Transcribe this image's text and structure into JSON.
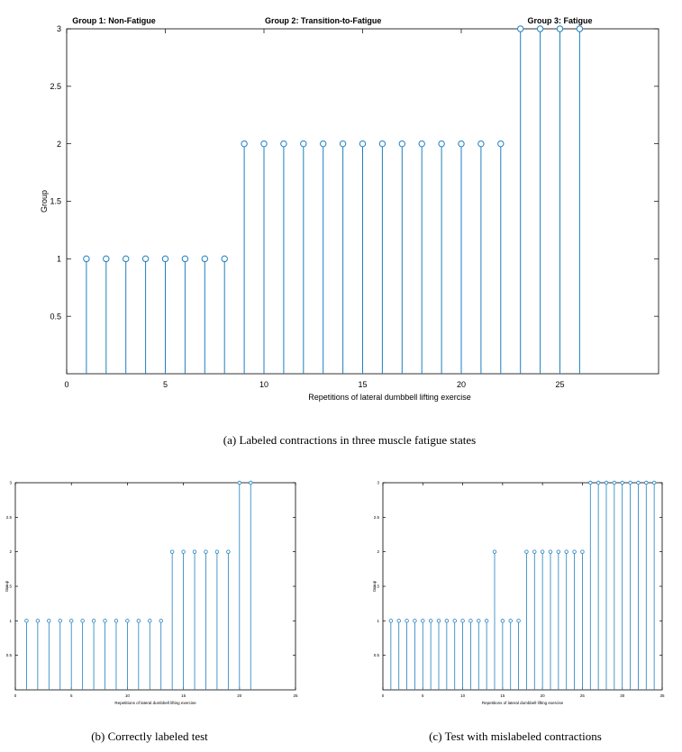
{
  "colors": {
    "stem": "#1f7fbf",
    "axis": "#000000",
    "background": "#ffffff"
  },
  "figure": {
    "caption_a": "(a)  Labeled contractions in three muscle fatigue states",
    "caption_b": "(b)  Correctly labeled test",
    "caption_c": "(c)  Test with mislabeled contractions"
  },
  "chart_data": [
    {
      "type": "stem",
      "id": "a",
      "xlabel": "Repetitions of lateral dumbbell lifting exercise",
      "ylabel": "Group",
      "xlim": [
        0,
        30
      ],
      "ylim": [
        0,
        3
      ],
      "xticks": [
        0,
        5,
        10,
        15,
        20,
        25
      ],
      "yticks": [
        0.5,
        1,
        1.5,
        2,
        2.5,
        3
      ],
      "annotations": [
        {
          "text": "Group 1: Non-Fatigue",
          "x": 2.4
        },
        {
          "text": "Group 2:  Transition-to-Fatigue",
          "x": 13.0
        },
        {
          "text": "Group 3: Fatigue",
          "x": 25.0
        }
      ],
      "x": [
        1,
        2,
        3,
        4,
        5,
        6,
        7,
        8,
        9,
        10,
        11,
        12,
        13,
        14,
        15,
        16,
        17,
        18,
        19,
        20,
        21,
        22,
        23,
        24,
        25,
        26
      ],
      "y": [
        1,
        1,
        1,
        1,
        1,
        1,
        1,
        1,
        2,
        2,
        2,
        2,
        2,
        2,
        2,
        2,
        2,
        2,
        2,
        2,
        2,
        2,
        3,
        3,
        3,
        3
      ]
    },
    {
      "type": "stem",
      "id": "b",
      "xlabel": "Repetitions of lateral dumbbell lifting exercise",
      "ylabel": "Group",
      "xlim": [
        0,
        25
      ],
      "ylim": [
        0,
        3
      ],
      "xticks": [
        0,
        5,
        10,
        15,
        20,
        25
      ],
      "yticks": [
        0.5,
        1,
        1.5,
        2,
        2.5,
        3
      ],
      "x": [
        1,
        2,
        3,
        4,
        5,
        6,
        7,
        8,
        9,
        10,
        11,
        12,
        13,
        14,
        15,
        16,
        17,
        18,
        19,
        20,
        21
      ],
      "y": [
        1,
        1,
        1,
        1,
        1,
        1,
        1,
        1,
        1,
        1,
        1,
        1,
        1,
        2,
        2,
        2,
        2,
        2,
        2,
        3,
        3
      ]
    },
    {
      "type": "stem",
      "id": "c",
      "xlabel": "Repetitions of lateral dumbbell lifting exercise",
      "ylabel": "Group",
      "xlim": [
        0,
        35
      ],
      "ylim": [
        0,
        3
      ],
      "xticks": [
        0,
        5,
        10,
        15,
        20,
        25,
        30,
        35
      ],
      "yticks": [
        0.5,
        1,
        1.5,
        2,
        2.5,
        3
      ],
      "x": [
        1,
        2,
        3,
        4,
        5,
        6,
        7,
        8,
        9,
        10,
        11,
        12,
        13,
        14,
        15,
        16,
        17,
        18,
        19,
        20,
        21,
        22,
        23,
        24,
        25,
        26,
        27,
        28,
        29,
        30,
        31,
        32,
        33,
        34
      ],
      "y": [
        1,
        1,
        1,
        1,
        1,
        1,
        1,
        1,
        1,
        1,
        1,
        1,
        1,
        2,
        1,
        1,
        1,
        2,
        2,
        2,
        2,
        2,
        2,
        2,
        2,
        3,
        3,
        3,
        3,
        3,
        3,
        3,
        3,
        3
      ]
    }
  ]
}
